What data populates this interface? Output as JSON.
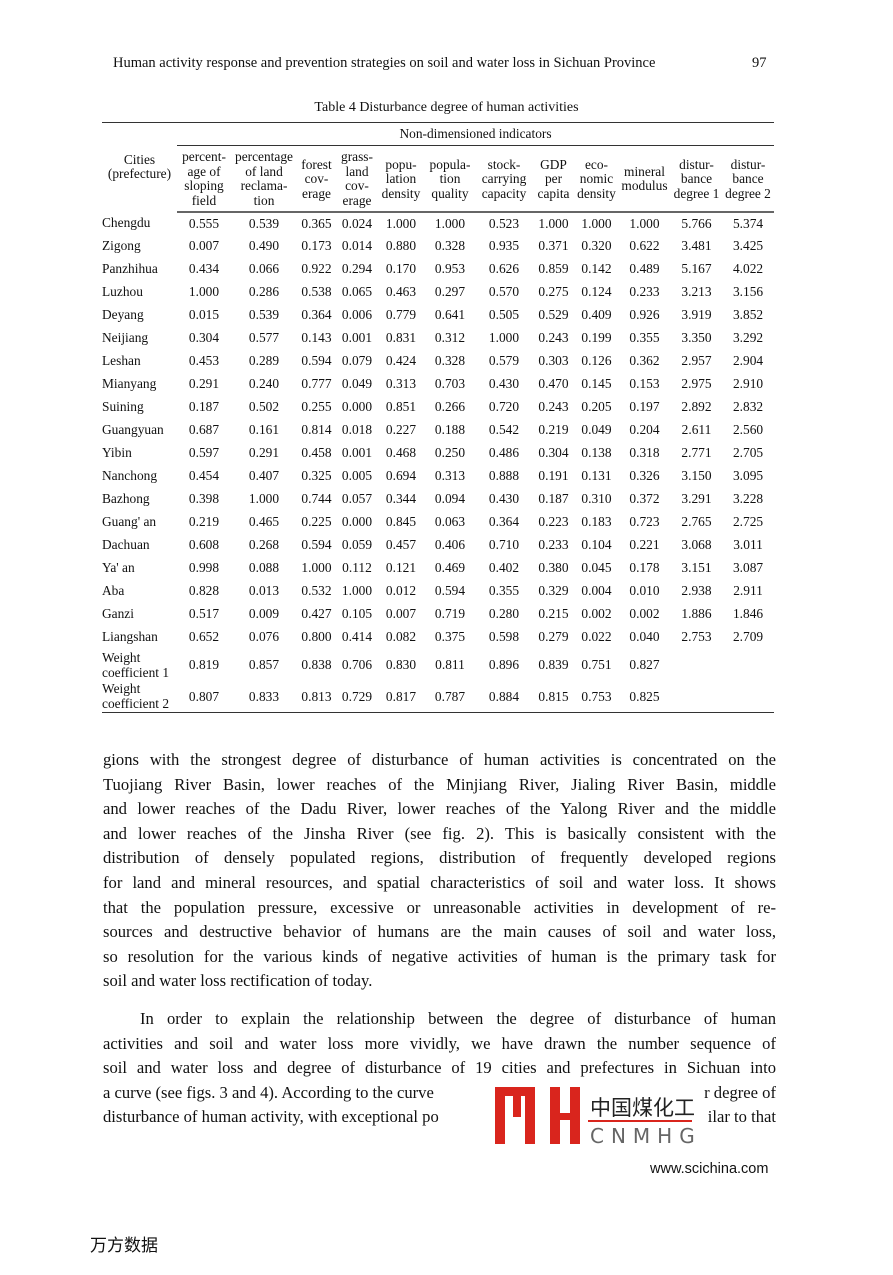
{
  "header": {
    "running_title": "Human activity response and prevention strategies on soil and water loss in Sichuan Province",
    "page_number": "97"
  },
  "table": {
    "caption": "Table 4  Disturbance degree of human activities",
    "group_header": "Non-dimensioned indicators",
    "first_col_header": [
      "Cities",
      "(prefecture)"
    ],
    "columns": [
      [
        "percent-",
        "age of",
        "sloping",
        "field"
      ],
      [
        "percentage",
        "of land",
        "reclama-",
        "tion"
      ],
      [
        "forest",
        "cov-",
        "erage"
      ],
      [
        "grass-",
        "land",
        "cov-",
        "erage"
      ],
      [
        "popu-",
        "lation",
        "density"
      ],
      [
        "popula-",
        "tion",
        "quality"
      ],
      [
        "stock-",
        "carrying",
        "capacity"
      ],
      [
        "GDP",
        "per",
        "capita"
      ],
      [
        "eco-",
        "nomic",
        "density"
      ],
      [
        "mineral",
        "modulus"
      ],
      [
        "distur-",
        "bance",
        "degree 1"
      ],
      [
        "distur-",
        "bance",
        "degree 2"
      ]
    ],
    "rows": [
      [
        "Chengdu",
        "0.555",
        "0.539",
        "0.365",
        "0.024",
        "1.000",
        "1.000",
        "0.523",
        "1.000",
        "1.000",
        "1.000",
        "5.766",
        "5.374"
      ],
      [
        "Zigong",
        "0.007",
        "0.490",
        "0.173",
        "0.014",
        "0.880",
        "0.328",
        "0.935",
        "0.371",
        "0.320",
        "0.622",
        "3.481",
        "3.425"
      ],
      [
        "Panzhihua",
        "0.434",
        "0.066",
        "0.922",
        "0.294",
        "0.170",
        "0.953",
        "0.626",
        "0.859",
        "0.142",
        "0.489",
        "5.167",
        "4.022"
      ],
      [
        "Luzhou",
        "1.000",
        "0.286",
        "0.538",
        "0.065",
        "0.463",
        "0.297",
        "0.570",
        "0.275",
        "0.124",
        "0.233",
        "3.213",
        "3.156"
      ],
      [
        "Deyang",
        "0.015",
        "0.539",
        "0.364",
        "0.006",
        "0.779",
        "0.641",
        "0.505",
        "0.529",
        "0.409",
        "0.926",
        "3.919",
        "3.852"
      ],
      [
        "Neijiang",
        "0.304",
        "0.577",
        "0.143",
        "0.001",
        "0.831",
        "0.312",
        "1.000",
        "0.243",
        "0.199",
        "0.355",
        "3.350",
        "3.292"
      ],
      [
        "Leshan",
        "0.453",
        "0.289",
        "0.594",
        "0.079",
        "0.424",
        "0.328",
        "0.579",
        "0.303",
        "0.126",
        "0.362",
        "2.957",
        "2.904"
      ],
      [
        "Mianyang",
        "0.291",
        "0.240",
        "0.777",
        "0.049",
        "0.313",
        "0.703",
        "0.430",
        "0.470",
        "0.145",
        "0.153",
        "2.975",
        "2.910"
      ],
      [
        "Suining",
        "0.187",
        "0.502",
        "0.255",
        "0.000",
        "0.851",
        "0.266",
        "0.720",
        "0.243",
        "0.205",
        "0.197",
        "2.892",
        "2.832"
      ],
      [
        "Guangyuan",
        "0.687",
        "0.161",
        "0.814",
        "0.018",
        "0.227",
        "0.188",
        "0.542",
        "0.219",
        "0.049",
        "0.204",
        "2.611",
        "2.560"
      ],
      [
        "Yibin",
        "0.597",
        "0.291",
        "0.458",
        "0.001",
        "0.468",
        "0.250",
        "0.486",
        "0.304",
        "0.138",
        "0.318",
        "2.771",
        "2.705"
      ],
      [
        "Nanchong",
        "0.454",
        "0.407",
        "0.325",
        "0.005",
        "0.694",
        "0.313",
        "0.888",
        "0.191",
        "0.131",
        "0.326",
        "3.150",
        "3.095"
      ],
      [
        "Bazhong",
        "0.398",
        "1.000",
        "0.744",
        "0.057",
        "0.344",
        "0.094",
        "0.430",
        "0.187",
        "0.310",
        "0.372",
        "3.291",
        "3.228"
      ],
      [
        "Guang' an",
        "0.219",
        "0.465",
        "0.225",
        "0.000",
        "0.845",
        "0.063",
        "0.364",
        "0.223",
        "0.183",
        "0.723",
        "2.765",
        "2.725"
      ],
      [
        "Dachuan",
        "0.608",
        "0.268",
        "0.594",
        "0.059",
        "0.457",
        "0.406",
        "0.710",
        "0.233",
        "0.104",
        "0.221",
        "3.068",
        "3.011"
      ],
      [
        "Ya' an",
        "0.998",
        "0.088",
        "1.000",
        "0.112",
        "0.121",
        "0.469",
        "0.402",
        "0.380",
        "0.045",
        "0.178",
        "3.151",
        "3.087"
      ],
      [
        "Aba",
        "0.828",
        "0.013",
        "0.532",
        "1.000",
        "0.012",
        "0.594",
        "0.355",
        "0.329",
        "0.004",
        "0.010",
        "2.938",
        "2.911"
      ],
      [
        "Ganzi",
        "0.517",
        "0.009",
        "0.427",
        "0.105",
        "0.007",
        "0.719",
        "0.280",
        "0.215",
        "0.002",
        "0.002",
        "1.886",
        "1.846"
      ],
      [
        "Liangshan",
        "0.652",
        "0.076",
        "0.800",
        "0.414",
        "0.082",
        "0.375",
        "0.598",
        "0.279",
        "0.022",
        "0.040",
        "2.753",
        "2.709"
      ]
    ],
    "weight_rows": [
      [
        "Weight coefficient 1",
        "0.819",
        "0.857",
        "0.838",
        "0.706",
        "0.830",
        "0.811",
        "0.896",
        "0.839",
        "0.751",
        "0.827",
        "",
        ""
      ],
      [
        "Weight coefficient 2",
        "0.807",
        "0.833",
        "0.813",
        "0.729",
        "0.817",
        "0.787",
        "0.884",
        "0.815",
        "0.753",
        "0.825",
        "",
        ""
      ]
    ]
  },
  "body": {
    "paragraph1": [
      "gions with the strongest degree of disturbance of human activities is concentrated on the",
      "Tuojiang River Basin, lower reaches of the Minjiang River, Jialing River Basin, middle",
      "and lower reaches of the Dadu River, lower reaches of the Yalong River and the middle",
      "and lower reaches of the Jinsha River (see fig. 2). This is basically consistent with the",
      "distribution of densely populated regions, distribution of frequently developed regions",
      "for land and mineral resources, and spatial characteristics of soil and water loss. It shows",
      "that the population pressure, excessive or unreasonable activities in development of re-",
      "sources and destructive behavior of humans are the main causes of soil and water loss,",
      "so resolution for the various kinds of negative activities of human is the primary task for",
      "soil and water loss rectification of today."
    ],
    "paragraph2": [
      "In order to explain the relationship between the degree of disturbance of human",
      "activities and soil and water loss more vividly, we have drawn the number sequence of",
      "soil and water loss and degree of disturbance of 19 cities and prefectures in Sichuan into"
    ],
    "partial_lines": [
      {
        "left": "a curve (see figs. 3 and 4). According to the curve",
        "right": "r degree of"
      },
      {
        "left": "disturbance of human activity, with exceptional po",
        "right": "ilar to that"
      }
    ]
  },
  "watermark_logo": {
    "letters": "YH",
    "chinese": "中国煤化工",
    "latin": "CNMHG",
    "color": "#d9251d"
  },
  "footer": {
    "url": "www.scichina.com",
    "source_mark": "万方数据"
  }
}
